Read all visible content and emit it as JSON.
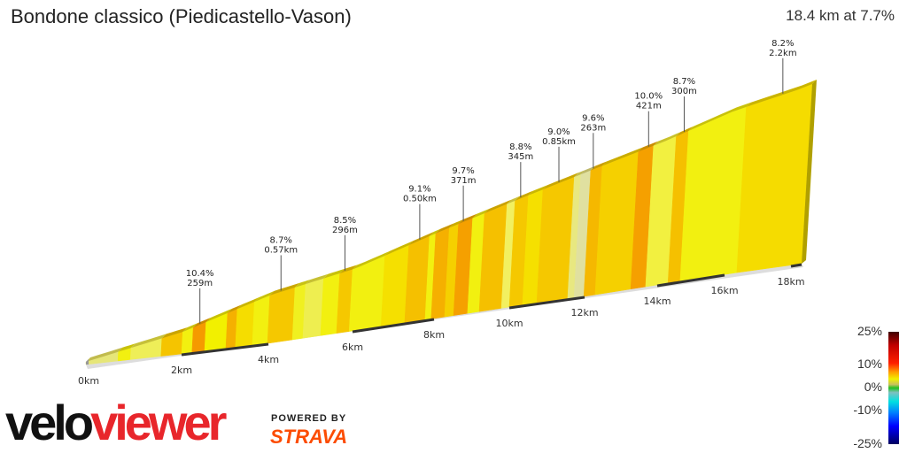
{
  "header": {
    "title": "Bondone classico (Piedicastello-Vason)",
    "summary": "18.4 km at 7.7%"
  },
  "chart_data": {
    "type": "area",
    "xlabel": "",
    "ylabel": "",
    "x_unit": "km",
    "xlim": [
      0,
      18.4
    ],
    "x_ticks": [
      {
        "v": 0,
        "label": "0km"
      },
      {
        "v": 2,
        "label": "2km"
      },
      {
        "v": 4,
        "label": "4km"
      },
      {
        "v": 6,
        "label": "6km"
      },
      {
        "v": 8,
        "label": "8km"
      },
      {
        "v": 10,
        "label": "10km"
      },
      {
        "v": 12,
        "label": "12km"
      },
      {
        "v": 14,
        "label": "14km"
      },
      {
        "v": 16,
        "label": "16km"
      },
      {
        "v": 18,
        "label": "18km"
      }
    ],
    "profile": {
      "km": [
        0,
        2,
        4,
        6,
        8,
        10,
        12,
        14,
        16,
        18.4
      ],
      "elevation_gain_m": [
        0,
        155,
        365,
        480,
        670,
        830,
        990,
        1130,
        1285,
        1417
      ]
    },
    "segments": [
      {
        "from": 0,
        "to": 0.67,
        "color": "#e6e678"
      },
      {
        "from": 0.67,
        "to": 0.93,
        "color": "#f2f010"
      },
      {
        "from": 0.93,
        "to": 1.57,
        "color": "#eeee58"
      },
      {
        "from": 1.57,
        "to": 2.0,
        "color": "#f5c400"
      },
      {
        "from": 2.0,
        "to": 2.24,
        "color": "#f2f010"
      },
      {
        "from": 2.24,
        "to": 2.53,
        "color": "#f59a00"
      },
      {
        "from": 2.53,
        "to": 3.02,
        "color": "#f2f000"
      },
      {
        "from": 3.02,
        "to": 3.24,
        "color": "#f5b000"
      },
      {
        "from": 3.24,
        "to": 3.63,
        "color": "#f5dd00"
      },
      {
        "from": 3.63,
        "to": 3.98,
        "color": "#f2f010"
      },
      {
        "from": 3.98,
        "to": 4.57,
        "color": "#f5c800"
      },
      {
        "from": 4.57,
        "to": 4.82,
        "color": "#f0f020"
      },
      {
        "from": 4.82,
        "to": 5.24,
        "color": "#eeee50"
      },
      {
        "from": 5.24,
        "to": 5.62,
        "color": "#f2f010"
      },
      {
        "from": 5.62,
        "to": 5.92,
        "color": "#f5c800"
      },
      {
        "from": 5.92,
        "to": 6.7,
        "color": "#f2f010"
      },
      {
        "from": 6.7,
        "to": 7.28,
        "color": "#f5e000"
      },
      {
        "from": 7.28,
        "to": 7.78,
        "color": "#f5c000"
      },
      {
        "from": 7.78,
        "to": 7.93,
        "color": "#f2f010"
      },
      {
        "from": 7.93,
        "to": 8.28,
        "color": "#f5b000"
      },
      {
        "from": 8.28,
        "to": 8.52,
        "color": "#f5d000"
      },
      {
        "from": 8.52,
        "to": 8.89,
        "color": "#f5a000"
      },
      {
        "from": 8.89,
        "to": 9.2,
        "color": "#f2f010"
      },
      {
        "from": 9.2,
        "to": 9.79,
        "color": "#f5c000"
      },
      {
        "from": 9.79,
        "to": 10.0,
        "color": "#f2f060"
      },
      {
        "from": 10.0,
        "to": 10.35,
        "color": "#f5c800"
      },
      {
        "from": 10.35,
        "to": 10.73,
        "color": "#f5e000"
      },
      {
        "from": 10.73,
        "to": 11.55,
        "color": "#f5c800"
      },
      {
        "from": 11.55,
        "to": 11.72,
        "color": "#e8e880"
      },
      {
        "from": 11.72,
        "to": 11.98,
        "color": "#e0e0a0"
      },
      {
        "from": 11.98,
        "to": 12.29,
        "color": "#f5b800"
      },
      {
        "from": 12.29,
        "to": 13.27,
        "color": "#f5d000"
      },
      {
        "from": 13.27,
        "to": 13.68,
        "color": "#f5a000"
      },
      {
        "from": 13.68,
        "to": 14.32,
        "color": "#f2f040"
      },
      {
        "from": 14.32,
        "to": 14.68,
        "color": "#f5c000"
      },
      {
        "from": 14.68,
        "to": 16.37,
        "color": "#f2f010"
      },
      {
        "from": 16.37,
        "to": 18.4,
        "color": "#f5dc00"
      }
    ],
    "annotations": [
      {
        "km": 2.35,
        "gradient": "10.4%",
        "length": "259m"
      },
      {
        "km": 4.2,
        "gradient": "8.7%",
        "length": "0.57km"
      },
      {
        "km": 5.7,
        "gradient": "8.5%",
        "length": "296m"
      },
      {
        "km": 7.5,
        "gradient": "9.1%",
        "length": "0.50km"
      },
      {
        "km": 8.6,
        "gradient": "9.7%",
        "length": "371m"
      },
      {
        "km": 10.1,
        "gradient": "8.8%",
        "length": "345m"
      },
      {
        "km": 11.1,
        "gradient": "9.0%",
        "length": "0.85km"
      },
      {
        "km": 12.0,
        "gradient": "9.6%",
        "length": "263m"
      },
      {
        "km": 13.5,
        "gradient": "10.0%",
        "length": "421m"
      },
      {
        "km": 14.5,
        "gradient": "8.7%",
        "length": "300m"
      },
      {
        "km": 17.4,
        "gradient": "8.2%",
        "length": "2.2km"
      }
    ],
    "legend": {
      "labels": [
        "25%",
        "10%",
        "0%",
        "-10%",
        "-25%"
      ],
      "colors": [
        "#400000",
        "#ff2000",
        "#f0f000",
        "#20c020",
        "#00e0e0",
        "#0000ff",
        "#000060"
      ]
    }
  },
  "branding": {
    "logo_a": "velo",
    "logo_b": "viewer",
    "powered_by": "POWERED BY",
    "strava": "STRAVA"
  }
}
